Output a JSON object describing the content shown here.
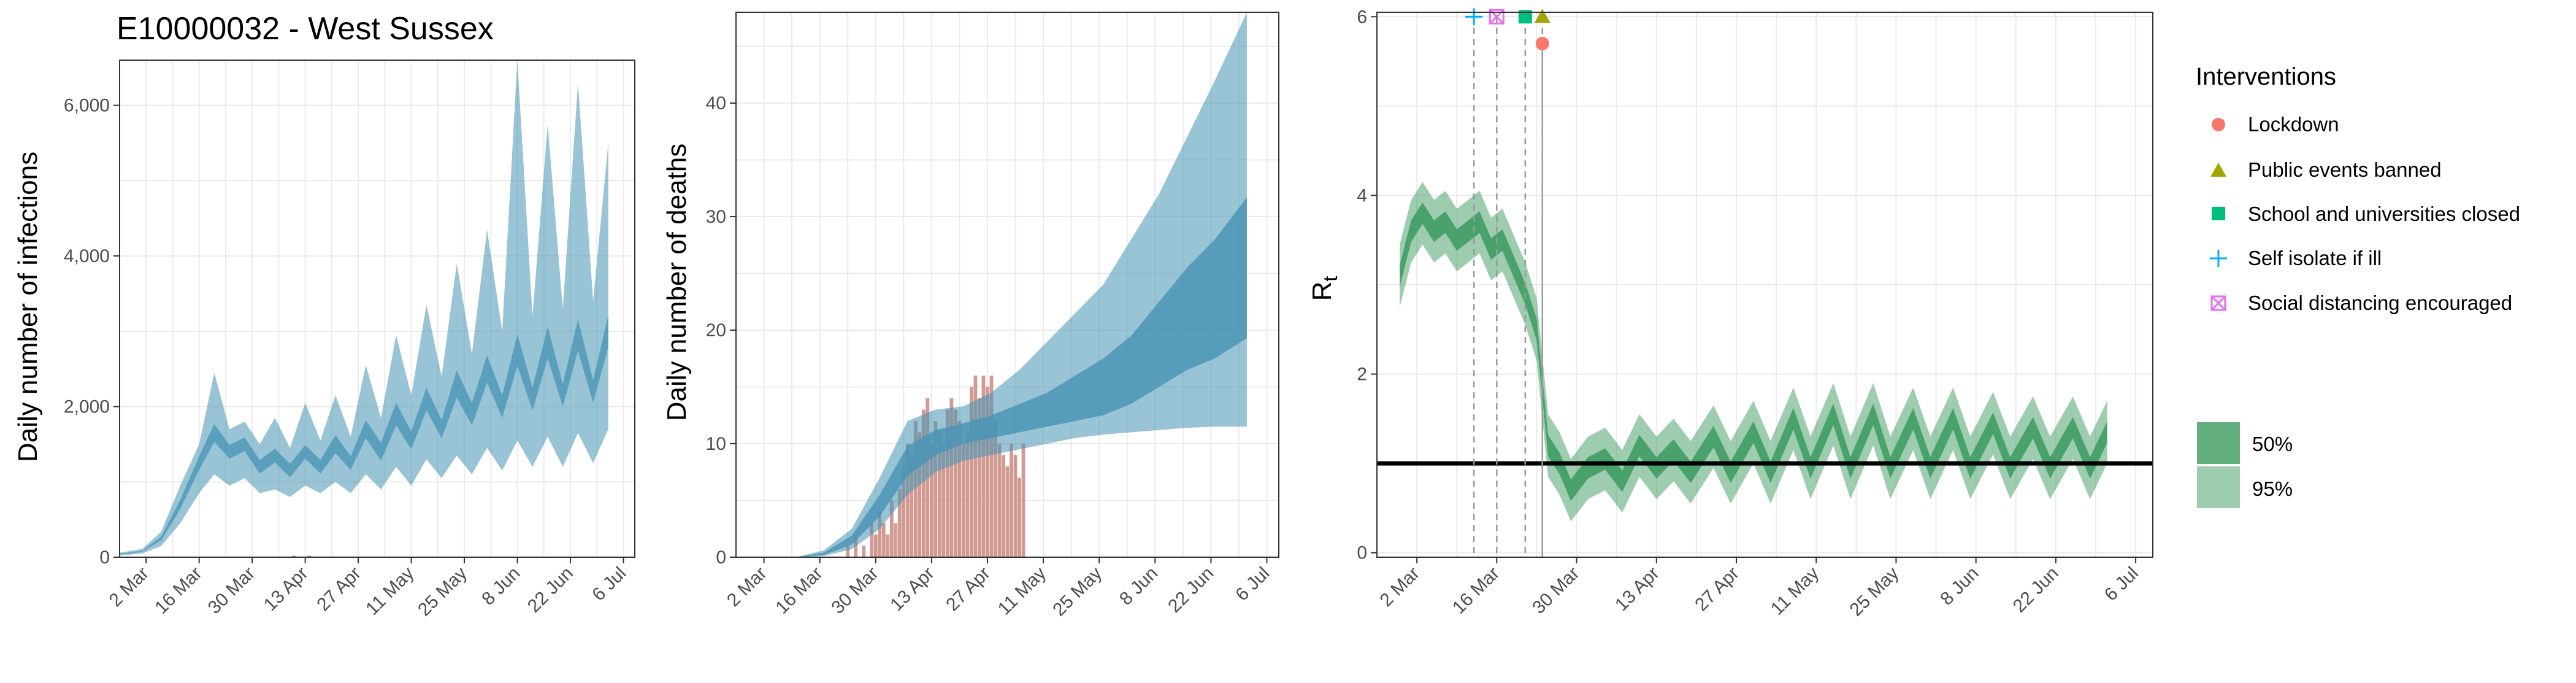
{
  "figure_title": "E10000032 - West Sussex",
  "colors": {
    "infections": "#2b8cbe",
    "infection_band": "#4694b4",
    "deaths_bar": "#c98a80",
    "rt": "#2e9e5b",
    "rt_band": "#3b9a5f",
    "lockdown": "#f8766d",
    "public_events": "#a3a500",
    "school": "#00bf7d",
    "self_isolate": "#00b0f6",
    "social_distancing": "#e76bf3"
  },
  "x_tick_labels": [
    "2 Mar",
    "16 Mar",
    "30 Mar",
    "13 Apr",
    "27 Apr",
    "11 May",
    "25 May",
    "8 Jun",
    "22 Jun",
    "6 Jul"
  ],
  "legend": {
    "title": "Interventions",
    "items": [
      {
        "label": "Lockdown",
        "icon": "circle-icon"
      },
      {
        "label": "Public events banned",
        "icon": "triangle-icon"
      },
      {
        "label": "School and universities closed",
        "icon": "square-icon"
      },
      {
        "label": "Self isolate if ill",
        "icon": "plus-icon"
      },
      {
        "label": "Social distancing encouraged",
        "icon": "boxed-x-icon"
      }
    ],
    "ci": [
      {
        "label": "50%"
      },
      {
        "label": "95%"
      }
    ]
  },
  "chart_data": [
    {
      "type": "area",
      "ylabel": "Daily number of infections",
      "xlabel": "",
      "x_range": [
        "2020-02-24",
        "2020-07-09"
      ],
      "y_range": [
        0,
        6600
      ],
      "y_ticks": [
        0,
        2000,
        4000,
        6000
      ],
      "y_tick_labels": [
        "0",
        "2,000",
        "4,000",
        "6,000"
      ],
      "grid": true,
      "series": [
        {
          "name": "50%",
          "points": [
            [
              "2020-02-24",
              40,
              20,
              30,
              60
            ],
            [
              "2020-03-01",
              80,
              50,
              70,
              110
            ],
            [
              "2020-03-06",
              250,
              150,
              210,
              340
            ],
            [
              "2020-03-11",
              700,
              450,
              600,
              950
            ],
            [
              "2020-03-16",
              1250,
              850,
              1100,
              1500
            ],
            [
              "2020-03-20",
              1650,
              1100,
              1450,
              2450
            ],
            [
              "2020-03-24",
              1400,
              950,
              1250,
              1700
            ],
            [
              "2020-03-28",
              1500,
              1050,
              1350,
              1800
            ],
            [
              "2020-04-01",
              1200,
              850,
              1050,
              1500
            ],
            [
              "2020-04-05",
              1350,
              900,
              1200,
              1850
            ],
            [
              "2020-04-09",
              1150,
              800,
              1000,
              1450
            ],
            [
              "2020-04-13",
              1400,
              950,
              1250,
              2050
            ],
            [
              "2020-04-17",
              1200,
              850,
              1050,
              1550
            ],
            [
              "2020-04-21",
              1500,
              1000,
              1300,
              2150
            ],
            [
              "2020-04-25",
              1250,
              850,
              1100,
              1600
            ],
            [
              "2020-04-29",
              1700,
              1100,
              1500,
              2550
            ],
            [
              "2020-05-03",
              1400,
              900,
              1200,
              1850
            ],
            [
              "2020-05-07",
              1900,
              1200,
              1650,
              2950
            ],
            [
              "2020-05-11",
              1550,
              950,
              1350,
              2150
            ],
            [
              "2020-05-15",
              2100,
              1300,
              1850,
              3350
            ],
            [
              "2020-05-19",
              1700,
              1050,
              1500,
              2400
            ],
            [
              "2020-05-23",
              2300,
              1350,
              2000,
              3900
            ],
            [
              "2020-05-27",
              1900,
              1100,
              1650,
              2700
            ],
            [
              "2020-05-31",
              2500,
              1450,
              2200,
              4350
            ],
            [
              "2020-06-04",
              2000,
              1150,
              1750,
              3000
            ],
            [
              "2020-06-08",
              2750,
              1550,
              2400,
              6600
            ],
            [
              "2020-06-12",
              2100,
              1200,
              1850,
              3200
            ],
            [
              "2020-06-16",
              2850,
              1600,
              2500,
              5750
            ],
            [
              "2020-06-20",
              2150,
              1200,
              1900,
              3300
            ],
            [
              "2020-06-24",
              2950,
              1650,
              2600,
              6300
            ],
            [
              "2020-06-28",
              2200,
              1250,
              1950,
              3400
            ],
            [
              "2020-07-02",
              3000,
              1700,
              2650,
              5500
            ]
          ]
        }
      ],
      "point_format": [
        "date",
        "median",
        "lower95",
        "lower50",
        "upper95"
      ],
      "observed_cases": [
        [
          "2020-04-10",
          20
        ],
        [
          "2020-04-14",
          20
        ],
        [
          "2020-04-20",
          10
        ]
      ]
    },
    {
      "type": "bar",
      "ylabel": "Daily number of deaths",
      "xlabel": "",
      "x_range": [
        "2020-02-24",
        "2020-07-09"
      ],
      "y_range": [
        0,
        48
      ],
      "y_ticks": [
        0,
        10,
        20,
        30,
        40
      ],
      "y_tick_labels": [
        "0",
        "10",
        "20",
        "30",
        "40"
      ],
      "grid": true,
      "observed_deaths": [
        [
          "2020-03-23",
          1
        ],
        [
          "2020-03-25",
          2
        ],
        [
          "2020-03-27",
          1
        ],
        [
          "2020-03-29",
          3
        ],
        [
          "2020-03-30",
          2
        ],
        [
          "2020-03-31",
          4
        ],
        [
          "2020-04-01",
          3
        ],
        [
          "2020-04-02",
          2
        ],
        [
          "2020-04-03",
          5
        ],
        [
          "2020-04-04",
          3
        ],
        [
          "2020-04-05",
          6
        ],
        [
          "2020-04-06",
          8
        ],
        [
          "2020-04-07",
          10
        ],
        [
          "2020-04-08",
          9
        ],
        [
          "2020-04-09",
          12
        ],
        [
          "2020-04-10",
          11
        ],
        [
          "2020-04-11",
          13
        ],
        [
          "2020-04-12",
          14
        ],
        [
          "2020-04-13",
          10
        ],
        [
          "2020-04-14",
          12
        ],
        [
          "2020-04-15",
          11
        ],
        [
          "2020-04-16",
          10
        ],
        [
          "2020-04-17",
          13
        ],
        [
          "2020-04-18",
          14
        ],
        [
          "2020-04-19",
          13
        ],
        [
          "2020-04-20",
          12
        ],
        [
          "2020-04-21",
          10
        ],
        [
          "2020-04-22",
          11
        ],
        [
          "2020-04-23",
          15
        ],
        [
          "2020-04-24",
          16
        ],
        [
          "2020-04-25",
          14
        ],
        [
          "2020-04-26",
          16
        ],
        [
          "2020-04-27",
          15
        ],
        [
          "2020-04-28",
          16
        ],
        [
          "2020-04-29",
          12
        ],
        [
          "2020-04-30",
          10
        ],
        [
          "2020-05-01",
          9
        ],
        [
          "2020-05-02",
          8
        ],
        [
          "2020-05-03",
          10
        ],
        [
          "2020-05-04",
          9
        ],
        [
          "2020-05-05",
          7
        ],
        [
          "2020-05-06",
          10
        ]
      ],
      "estimated_deaths": [
        [
          "2020-03-10",
          0,
          0,
          0,
          0,
          0
        ],
        [
          "2020-03-17",
          0.3,
          0.1,
          0.6,
          0.2,
          0.4
        ],
        [
          "2020-03-24",
          1.5,
          0.7,
          2.5,
          1.1,
          1.9
        ],
        [
          "2020-03-31",
          4.5,
          2.5,
          7,
          3.6,
          5.5
        ],
        [
          "2020-04-07",
          8.5,
          5.5,
          12,
          7.2,
          9.8
        ],
        [
          "2020-04-14",
          10.2,
          7.5,
          13,
          9.0,
          11.2
        ],
        [
          "2020-04-21",
          11,
          8.5,
          13.3,
          10,
          11.8
        ],
        [
          "2020-04-28",
          11.5,
          9,
          14.5,
          10.5,
          12.5
        ],
        [
          "2020-05-05",
          12.2,
          9.5,
          16.5,
          11,
          13.5
        ],
        [
          "2020-05-12",
          13,
          10,
          19,
          11.5,
          14.5
        ],
        [
          "2020-05-19",
          14,
          10.5,
          21.5,
          12,
          16
        ],
        [
          "2020-05-26",
          15,
          10.8,
          24,
          12.5,
          17.5
        ],
        [
          "2020-06-02",
          16.5,
          11,
          28,
          13.5,
          19.5
        ],
        [
          "2020-06-09",
          18.5,
          11.2,
          32,
          15,
          22.5
        ],
        [
          "2020-06-16",
          20.5,
          11.4,
          37,
          16.5,
          25.5
        ],
        [
          "2020-06-23",
          22.5,
          11.5,
          42,
          17.5,
          28
        ],
        [
          "2020-07-01",
          25.5,
          11.5,
          48,
          19.3,
          31.7
        ]
      ],
      "estimated_format": [
        "date",
        "median",
        "lower95",
        "upper95",
        "lower50",
        "upper50"
      ]
    },
    {
      "type": "line",
      "ylabel": "R",
      "ylabel_subscript": "t",
      "xlabel": "",
      "x_range": [
        "2020-02-24",
        "2020-07-09"
      ],
      "y_range": [
        -0.05,
        6.05
      ],
      "y_ticks": [
        0,
        2,
        4,
        6
      ],
      "y_tick_labels": [
        "0",
        "2",
        "4",
        "6"
      ],
      "reference_line": 1,
      "grid": true,
      "rt": [
        [
          "2020-02-28",
          3.1
        ],
        [
          "2020-03-01",
          3.6
        ],
        [
          "2020-03-03",
          3.8
        ],
        [
          "2020-03-05",
          3.6
        ],
        [
          "2020-03-07",
          3.7
        ],
        [
          "2020-03-09",
          3.5
        ],
        [
          "2020-03-11",
          3.6
        ],
        [
          "2020-03-13",
          3.7
        ],
        [
          "2020-03-15",
          3.4
        ],
        [
          "2020-03-17",
          3.5
        ],
        [
          "2020-03-19",
          3.2
        ],
        [
          "2020-03-21",
          2.9
        ],
        [
          "2020-03-23",
          2.5
        ],
        [
          "2020-03-25",
          1.2
        ],
        [
          "2020-03-27",
          1.0
        ],
        [
          "2020-03-29",
          0.7
        ],
        [
          "2020-04-01",
          0.95
        ],
        [
          "2020-04-04",
          1.05
        ],
        [
          "2020-04-07",
          0.8
        ],
        [
          "2020-04-10",
          1.2
        ],
        [
          "2020-04-13",
          0.95
        ],
        [
          "2020-04-16",
          1.15
        ],
        [
          "2020-04-19",
          0.9
        ],
        [
          "2020-04-23",
          1.3
        ],
        [
          "2020-04-26",
          0.9
        ],
        [
          "2020-04-30",
          1.35
        ],
        [
          "2020-05-03",
          0.9
        ],
        [
          "2020-05-07",
          1.5
        ],
        [
          "2020-05-10",
          0.95
        ],
        [
          "2020-05-14",
          1.55
        ],
        [
          "2020-05-17",
          0.95
        ],
        [
          "2020-05-21",
          1.55
        ],
        [
          "2020-05-24",
          0.95
        ],
        [
          "2020-05-28",
          1.5
        ],
        [
          "2020-05-31",
          0.95
        ],
        [
          "2020-06-04",
          1.5
        ],
        [
          "2020-06-07",
          0.95
        ],
        [
          "2020-06-11",
          1.45
        ],
        [
          "2020-06-14",
          0.95
        ],
        [
          "2020-06-18",
          1.4
        ],
        [
          "2020-06-21",
          0.95
        ],
        [
          "2020-06-25",
          1.4
        ],
        [
          "2020-06-28",
          0.95
        ],
        [
          "2020-07-01",
          1.35
        ]
      ],
      "band50_halfwidth": 0.12,
      "band95_halfwidth": 0.35,
      "interventions": [
        {
          "name": "Self isolate if ill",
          "date": "2020-03-12",
          "marker": "plus",
          "y": 6.0
        },
        {
          "name": "Social distancing encouraged",
          "date": "2020-03-16",
          "marker": "boxed-x",
          "y": 6.0
        },
        {
          "name": "School and universities closed",
          "date": "2020-03-21",
          "marker": "square",
          "y": 6.0
        },
        {
          "name": "Public events banned",
          "date": "2020-03-24",
          "marker": "triangle",
          "y": 6.0
        },
        {
          "name": "Lockdown",
          "date": "2020-03-24",
          "marker": "circle",
          "y": 5.7
        }
      ]
    }
  ]
}
